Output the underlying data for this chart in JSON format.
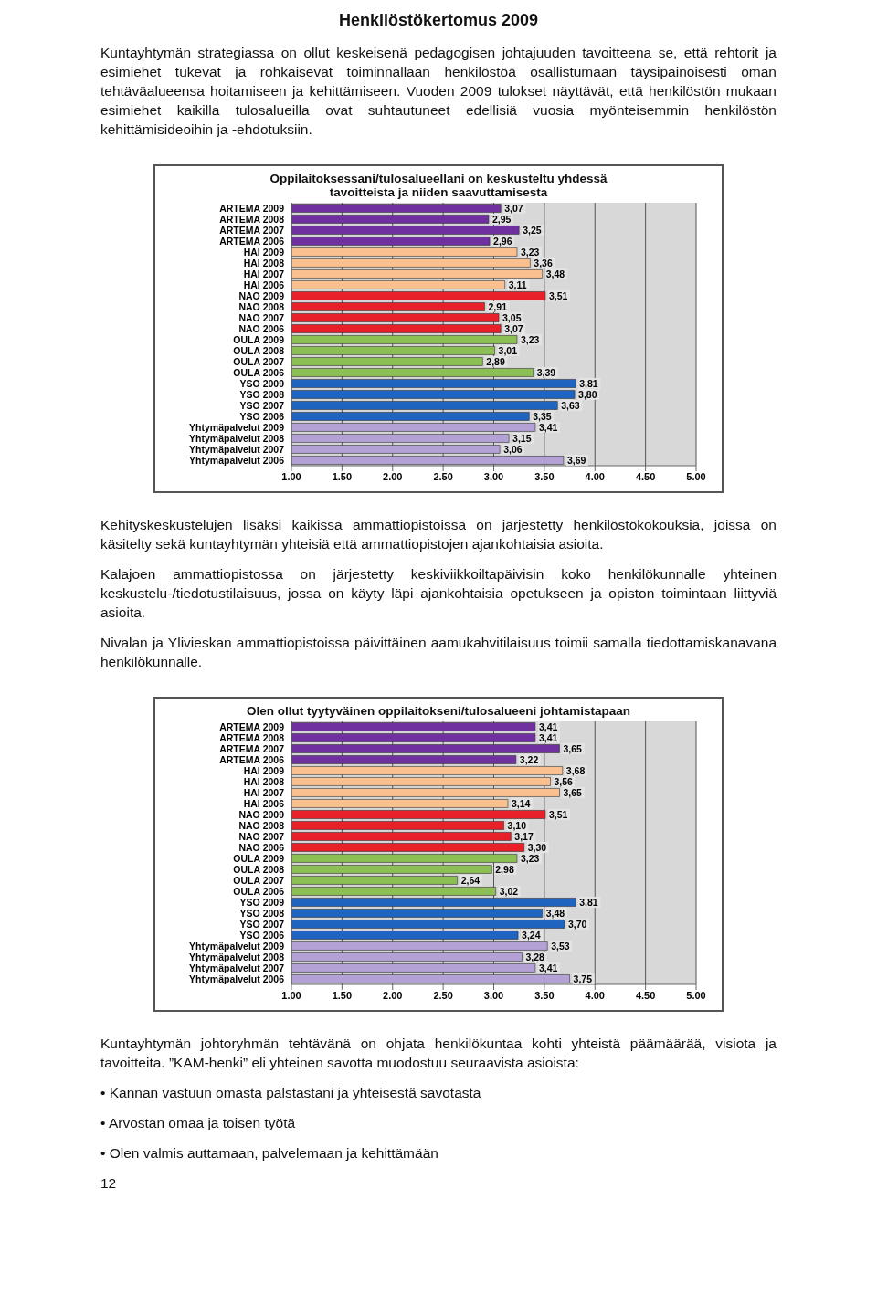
{
  "chart_data": [
    {
      "type": "other",
      "title": "Henkilöstökertomus 2009",
      "annotations": [
        "Kuntayhtymän strategiassa on ollut keskeisenä pedagogisen johtajuuden tavoitteena se, että rehtorit ja esimiehet tukevat ja rohkaisevat toiminnallaan henkilöstöä osallistumaan täysipainoisesti oman tehtäväalueensa hoitamiseen ja kehittämiseen. Vuoden 2009 tulokset näyttävät, että henkilöstön mukaan esimiehet kaikilla tulosalueilla ovat suhtautuneet edellisiä vuosia myönteisemmin henkilöstön kehittämisideoihin ja -ehdotuksiin."
      ]
    },
    {
      "type": "bar",
      "orientation": "horizontal",
      "title": "Oppilaitoksessani/tulosalueellani on keskusteltu yhdessä tavoitteista ja niiden saavuttamisesta",
      "categories": [
        "ARTEMA 2009",
        "ARTEMA 2008",
        "ARTEMA 2007",
        "ARTEMA 2006",
        "HAI 2009",
        "HAI 2008",
        "HAI 2007",
        "HAI 2006",
        "NAO 2009",
        "NAO 2008",
        "NAO 2007",
        "NAO 2006",
        "OULA 2009",
        "OULA 2008",
        "OULA 2007",
        "OULA 2006",
        "YSO 2009",
        "YSO 2008",
        "YSO 2007",
        "YSO 2006",
        "Yhtymäpalvelut 2009",
        "Yhtymäpalvelut 2008",
        "Yhtymäpalvelut 2007",
        "Yhtymäpalvelut 2006"
      ],
      "values": [
        3.07,
        2.95,
        3.25,
        2.96,
        3.23,
        3.36,
        3.48,
        3.11,
        3.51,
        2.91,
        3.05,
        3.07,
        3.23,
        3.01,
        2.89,
        3.39,
        3.81,
        3.8,
        3.63,
        3.35,
        3.41,
        3.15,
        3.06,
        3.69
      ],
      "value_labels": [
        "3,07",
        "2,95",
        "3,25",
        "2,96",
        "3,23",
        "3,36",
        "3,48",
        "3,11",
        "3,51",
        "2,91",
        "3,05",
        "3,07",
        "3,23",
        "3,01",
        "2,89",
        "3,39",
        "3,81",
        "3,80",
        "3,63",
        "3,35",
        "3,41",
        "3,15",
        "3,06",
        "3,69"
      ],
      "colors": [
        "#7030a0",
        "#7030a0",
        "#7030a0",
        "#7030a0",
        "#fbc090",
        "#fbc090",
        "#fbc090",
        "#fbc090",
        "#e8202a",
        "#e8202a",
        "#e8202a",
        "#e8202a",
        "#8cc054",
        "#8cc054",
        "#8cc054",
        "#8cc054",
        "#1f64c0",
        "#1f64c0",
        "#1f64c0",
        "#1f64c0",
        "#b4a2d6",
        "#b4a2d6",
        "#b4a2d6",
        "#b4a2d6"
      ],
      "xlim": [
        1,
        5
      ],
      "xticks": [
        {
          "value": 1,
          "label": "1.00"
        },
        {
          "value": 1.5,
          "label": "1.50"
        },
        {
          "value": 2,
          "label": "2.00"
        },
        {
          "value": 2.5,
          "label": "2.50"
        },
        {
          "value": 3,
          "label": "3.00"
        },
        {
          "value": 3.5,
          "label": "3.50"
        },
        {
          "value": 4,
          "label": "4.00"
        },
        {
          "value": 4.5,
          "label": "4.50"
        },
        {
          "value": 5,
          "label": "5.00"
        }
      ],
      "grid": "x"
    },
    {
      "type": "other",
      "annotations": [
        "Kehityskeskustelujen lisäksi kaikissa ammattiopistoissa on järjestetty henkilöstökokouksia, joissa on käsitelty sekä kuntayhtymän yhteisiä että ammattiopistojen ajankohtaisia asioita.",
        "Kalajoen ammattiopistossa on järjestetty keskiviikkoiltapäivisin koko henkilökunnalle yhteinen keskustelu-/tiedotustilaisuus, jossa on käyty läpi ajankohtaisia opetukseen ja opiston toimintaan liittyviä asioita.",
        "Nivalan ja Ylivieskan ammattiopistoissa päivittäinen aamukahvitilaisuus toimii samalla tiedottamiskanavana henkilökunnalle."
      ]
    },
    {
      "type": "bar",
      "orientation": "horizontal",
      "title": "Olen ollut tyytyväinen oppilaitokseni/tulosalueeni johtamistapaan",
      "categories": [
        "ARTEMA 2009",
        "ARTEMA 2008",
        "ARTEMA 2007",
        "ARTEMA 2006",
        "HAI 2009",
        "HAI 2008",
        "HAI 2007",
        "HAI 2006",
        "NAO 2009",
        "NAO 2008",
        "NAO 2007",
        "NAO 2006",
        "OULA 2009",
        "OULA 2008",
        "OULA 2007",
        "OULA 2006",
        "YSO 2009",
        "YSO 2008",
        "YSO 2007",
        "YSO 2006",
        "Yhtymäpalvelut 2009",
        "Yhtymäpalvelut 2008",
        "Yhtymäpalvelut 2007",
        "Yhtymäpalvelut 2006"
      ],
      "values": [
        3.41,
        3.41,
        3.65,
        3.22,
        3.68,
        3.56,
        3.65,
        3.14,
        3.51,
        3.1,
        3.17,
        3.3,
        3.23,
        2.98,
        2.64,
        3.02,
        3.81,
        3.48,
        3.7,
        3.24,
        3.53,
        3.28,
        3.41,
        3.75
      ],
      "value_labels": [
        "3,41",
        "3,41",
        "3,65",
        "3,22",
        "3,68",
        "3,56",
        "3,65",
        "3,14",
        "3,51",
        "3,10",
        "3,17",
        "3,30",
        "3,23",
        "2,98",
        "2,64",
        "3,02",
        "3,81",
        "3,48",
        "3,70",
        "3,24",
        "3,53",
        "3,28",
        "3,41",
        "3,75"
      ],
      "colors": [
        "#7030a0",
        "#7030a0",
        "#7030a0",
        "#7030a0",
        "#fbc090",
        "#fbc090",
        "#fbc090",
        "#fbc090",
        "#e8202a",
        "#e8202a",
        "#e8202a",
        "#e8202a",
        "#8cc054",
        "#8cc054",
        "#8cc054",
        "#8cc054",
        "#1f64c0",
        "#1f64c0",
        "#1f64c0",
        "#1f64c0",
        "#b4a2d6",
        "#b4a2d6",
        "#b4a2d6",
        "#b4a2d6"
      ],
      "xlim": [
        1,
        5
      ],
      "xticks": [
        {
          "value": 1,
          "label": "1.00"
        },
        {
          "value": 1.5,
          "label": "1.50"
        },
        {
          "value": 2,
          "label": "2.00"
        },
        {
          "value": 2.5,
          "label": "2.50"
        },
        {
          "value": 3,
          "label": "3.00"
        },
        {
          "value": 3.5,
          "label": "3.50"
        },
        {
          "value": 4,
          "label": "4.00"
        },
        {
          "value": 4.5,
          "label": "4.50"
        },
        {
          "value": 5,
          "label": "5.00"
        }
      ],
      "grid": "x"
    },
    {
      "type": "other",
      "annotations": [
        "Kuntayhtymän johtoryhmän tehtävänä on ohjata henkilökuntaa kohti yhteistä päämäärää, visiota ja tavoitteita. ”KAM-henki” eli yhteinen savotta muodostuu seuraavista asioista:",
        "•  Kannan vastuun omasta palstastani ja yhteisestä savotasta",
        "•  Arvostan omaa ja toisen työtä",
        "•  Olen valmis auttamaan, palvelemaan ja kehittämään",
        "12"
      ]
    }
  ]
}
